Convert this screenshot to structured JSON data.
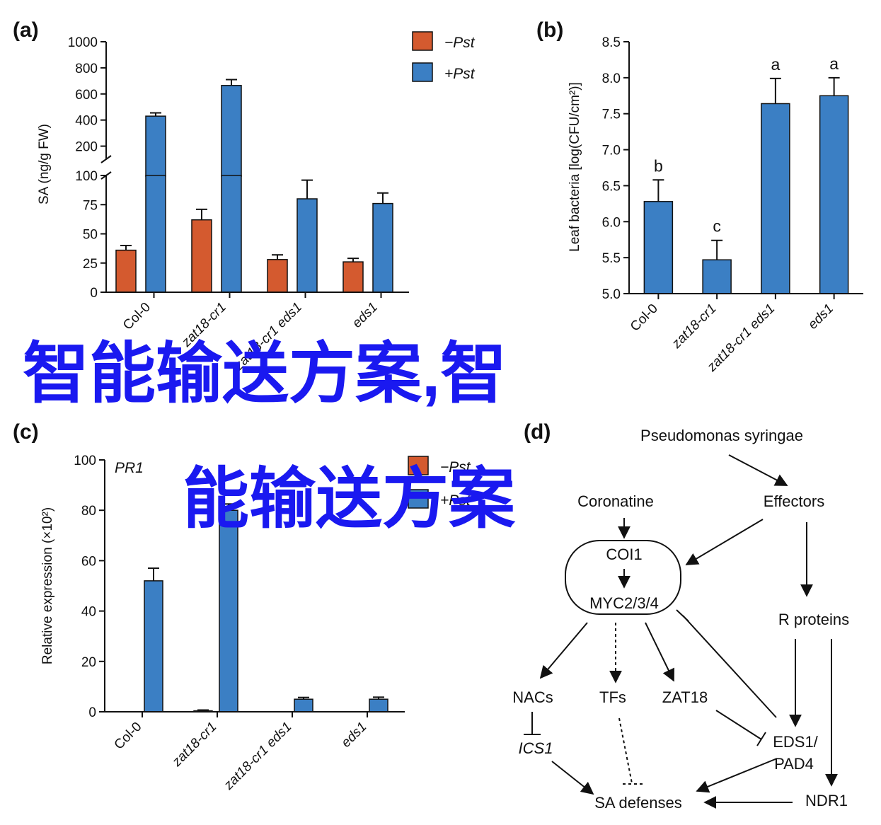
{
  "colors": {
    "minus_pst": "#d45a2f",
    "plus_pst": "#3b7fc4",
    "watermark": "#1a19f0"
  },
  "legend": {
    "minus": "−Pst",
    "plus": "+Pst"
  },
  "panels": {
    "a": "(a)",
    "b": "(b)",
    "c": "(c)",
    "d": "(d)"
  },
  "chart_data": [
    {
      "id": "a",
      "type": "bar",
      "ylabel": "SA (ng/g FW)",
      "categories": [
        "Col-0",
        "zat18-cr1",
        "zat18-cr1 eds1",
        "eds1"
      ],
      "broken_axis": {
        "lower": [
          0,
          100
        ],
        "upper": [
          100,
          1000
        ]
      },
      "yticks_lower": [
        0,
        25,
        50,
        75,
        100
      ],
      "yticks_upper": [
        200,
        400,
        600,
        800,
        1000
      ],
      "series": [
        {
          "name": "−Pst",
          "values": [
            36,
            62,
            28,
            26
          ],
          "errors": [
            4,
            9,
            4,
            3
          ]
        },
        {
          "name": "+Pst",
          "values": [
            430,
            665,
            80,
            76
          ],
          "errors": [
            25,
            45,
            16,
            9
          ]
        }
      ]
    },
    {
      "id": "b",
      "type": "bar",
      "ylabel": "Leaf bacteria [log(CFU/cm²)]",
      "ylim": [
        5.0,
        8.5
      ],
      "yticks": [
        "5.0",
        "5.5",
        "6.0",
        "6.5",
        "7.0",
        "7.5",
        "8.0",
        "8.5"
      ],
      "categories": [
        "Col-0",
        "zat18-cr1",
        "zat18-cr1 eds1",
        "eds1"
      ],
      "series": [
        {
          "values": [
            6.28,
            5.47,
            7.64,
            7.75
          ],
          "errors": [
            0.3,
            0.27,
            0.35,
            0.25
          ],
          "letters": [
            "b",
            "c",
            "a",
            "a"
          ]
        }
      ]
    },
    {
      "id": "c",
      "type": "bar",
      "title": "PR1",
      "ylabel": "Relative expression (×10²)",
      "ylim": [
        0,
        100
      ],
      "yticks": [
        "0",
        "20",
        "40",
        "60",
        "80",
        "100"
      ],
      "categories": [
        "Col-0",
        "zat18-cr1",
        "zat18-cr1 eds1",
        "eds1"
      ],
      "series": [
        {
          "name": "−Pst",
          "values": [
            0,
            0.4,
            0,
            0
          ],
          "errors": [
            0,
            0.3,
            0,
            0
          ]
        },
        {
          "name": "+Pst",
          "values": [
            52,
            80,
            5,
            5
          ],
          "errors": [
            5,
            2.5,
            0.7,
            0.8
          ]
        }
      ]
    }
  ],
  "diagram_d": {
    "nodes": {
      "pseudomonas": "Pseudomonas syringae",
      "coronatine": "Coronatine",
      "effectors": "Effectors",
      "coi1": "COI1",
      "myc": "MYC2/3/4",
      "r_proteins": "R proteins",
      "nacs": "NACs",
      "tfs": "TFs",
      "zat18": "ZAT18",
      "ics1": "ICS1",
      "eds1_pad4_line1": "EDS1/",
      "eds1_pad4_line2": "PAD4",
      "sa_defenses": "SA defenses",
      "ndr1": "NDR1"
    }
  },
  "watermark": {
    "line1": "智能输送方案,智",
    "line2": "能输送方案"
  }
}
